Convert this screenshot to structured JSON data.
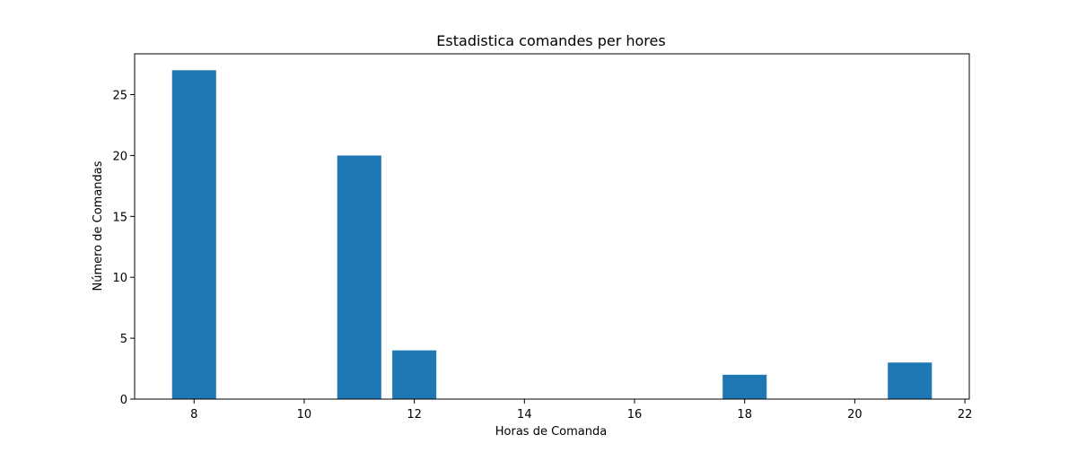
{
  "chart_data": {
    "type": "bar",
    "title": "Estadistica comandes per hores",
    "xlabel": "Horas de Comanda",
    "ylabel": "Número de Comandas",
    "x": [
      8,
      11,
      12,
      18,
      21
    ],
    "values": [
      27,
      20,
      4,
      2,
      3
    ],
    "bar_width": 0.8,
    "xlim": [
      6.92,
      22.08
    ],
    "ylim": [
      0,
      28.35
    ],
    "xticks": [
      8,
      10,
      12,
      14,
      16,
      18,
      20,
      22
    ],
    "yticks": [
      0,
      5,
      10,
      15,
      20,
      25
    ],
    "grid": false,
    "bar_color": "#1f77b4"
  }
}
